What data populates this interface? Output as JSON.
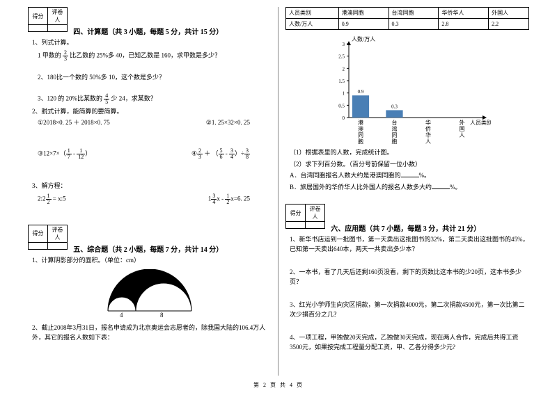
{
  "score_header": {
    "c1": "得分",
    "c2": "评卷人"
  },
  "section4": {
    "title": "四、计算题（共 3 小题，每题 5 分，共计 15 分）",
    "q1": "1、列式计算。",
    "q1a_pre": "1 甲数的",
    "q1a_frac": {
      "n": "2",
      "d": "3"
    },
    "q1a_post": "比乙数的 25%多 40，已知乙数是 160，求甲数是多少？",
    "q1b": "2、180比一个数的 50%多 10，这个数是多少？",
    "q1c_pre": "3、120 的 20%比某数的",
    "q1c_frac": {
      "n": "4",
      "d": "5"
    },
    "q1c_post": "少 24，求某数？",
    "q2": "2、脱式计算，能简算的要简算。",
    "q2a": "①2018×0. 25 ＋ 2018×0. 75",
    "q2b": "②1. 25×32×0. 25",
    "q2c_pre": "③12×7×（",
    "q2c_f1": {
      "n": "1",
      "d": "7"
    },
    "q2c_mid": " - ",
    "q2c_f2": {
      "n": "1",
      "d": "12"
    },
    "q2c_post": "）",
    "q2d_pre": "④",
    "q2d_f1": {
      "n": "2",
      "d": "3"
    },
    "q2d_mid1": " ＋ （",
    "q2d_f2": {
      "n": "5",
      "d": "6"
    },
    "q2d_mid2": " - ",
    "q2d_f3": {
      "n": "3",
      "d": "4"
    },
    "q2d_mid3": "）÷",
    "q2d_f4": {
      "n": "3",
      "d": "8"
    },
    "q3": "3、解方程：",
    "q3a_pre": "2:2",
    "q3a_f": {
      "n": "1",
      "d": "2"
    },
    "q3a_post": " = x:5",
    "q3b_pre": "1",
    "q3b_f1": {
      "n": "3",
      "d": "4"
    },
    "q3b_mid": "x - ",
    "q3b_f2": {
      "n": "1",
      "d": "2"
    },
    "q3b_post": "x=6. 25"
  },
  "section5": {
    "title": "五、综合题（共 2 小题，每题 7 分，共计 14 分）",
    "q1": "1、计算阴影部分的面积。（单位：cm）",
    "fig_labels": {
      "a": "4",
      "b": "8"
    },
    "q2": "2、截止2008年3月31日，报名申请成为北京奥运会志愿者的，除我国大陆的106.4万人外，其它的报名人数如下表："
  },
  "table": {
    "h1": "人员类别",
    "h2": "港澳同胞",
    "h3": "台湾同胞",
    "h4": "华侨华人",
    "h5": "外国人",
    "r1": "人数/万人",
    "v1": "0.9",
    "v2": "0.3",
    "v3": "2.8",
    "v4": "2.2"
  },
  "chart": {
    "y_label": "人数/万人",
    "x_label": "人员类别",
    "y_ticks": [
      "0",
      "0.5",
      "1",
      "1.5",
      "2",
      "2.5",
      "3"
    ],
    "y_max": 3,
    "cats": [
      "港澳同胞",
      "台湾同胞",
      "华侨华人",
      "外国人"
    ],
    "bars": [
      {
        "label": "0.9",
        "value": 0.9,
        "color": "#4a7fb5"
      },
      {
        "label": "0.3",
        "value": 0.3,
        "color": "#4a7fb5"
      },
      {
        "label": "",
        "value": 0,
        "color": "#4a7fb5"
      },
      {
        "label": "",
        "value": 0,
        "color": "#4a7fb5"
      }
    ],
    "axis_color": "#000000",
    "grid_color": "#000000"
  },
  "chart_q": {
    "a": "（1）根据表里的人数，完成统计图。",
    "b": "（2）求下列百分数。（百分号前保留一位小数）",
    "c": "A．台湾同胞报名人数大约是港澳同胞的",
    "c_suffix": "%。",
    "d": "B．旅居国外的华侨华人比外国人的报名人数多大约",
    "d_suffix": "%。"
  },
  "section6": {
    "title": "六、应用题（共 7 小题，每题 3 分，共计 21 分）",
    "q1": "1、新华书店运到一批图书，第一天卖出这批图书的32%，第二天卖出这批图书的45%，已知第一天卖出640本，两天一共卖出多少本？",
    "q2": "2、一本书，看了几天后还剩160页没看，剩下的页数比这本书的少20页，这本书多少页？",
    "q3": "3、红光小学师生向灾区捐款，第一次捐款4000元，第二次捐款4500元，第一次比第二次少捐百分之几？",
    "q4": "4、一项工程，甲独做20天完成，乙独做30天完成，现在两人合作，完成后共得工资3500元，如果按完成工程量分配工资，甲、乙各分得多少元?"
  },
  "footer": "第 2 页 共 4 页"
}
